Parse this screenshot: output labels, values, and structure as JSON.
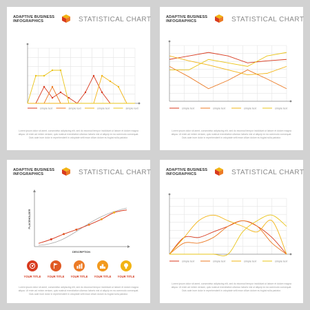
{
  "panels": [
    {
      "brand": [
        "ADAPTIVE BUSINESS",
        "INFOGRAPHICS"
      ],
      "title": "STATISTICAL CHART",
      "body_text": "Lorem ipsum dolor sit amet, consectetur adipiscing elit, sed do eiusmod tempor incididunt ut labore et dolore magna aliqua. Ut enim ad minim veniam, quis nostrud exercitation ullamco laboris nisi ut aliquip ex ea commodo consequat. Duis aute irure dolor in reprehenderit in voluptate velit esse cillum dolore eu fugiat nulla pariatur."
    },
    {
      "brand": [
        "ADAPTIVE BUSINESS",
        "INFOGRAPHICS"
      ],
      "title": "STATISTICAL CHART",
      "body_text": "Lorem ipsum dolor sit amet, consectetur adipiscing elit, sed do eiusmod tempor incididunt ut labore et dolore magna aliqua. Ut enim ad minim veniam, quis nostrud exercitation ullamco laboris nisi ut aliquip ex ea commodo consequat. Duis aute irure dolor in reprehenderit in voluptate velit esse cillum dolore eu fugiat nulla pariatur."
    },
    {
      "brand": [
        "ADAPTIVE BUSINESS",
        "INFOGRAPHICS"
      ],
      "title": "STATISTICAL CHART",
      "body_text": "Lorem ipsum dolor sit amet, consectetur adipiscing elit, sed do eiusmod tempor incididunt ut labore et dolore magna aliqua. Ut enim ad minim veniam, quis nostrud exercitation ullamco laboris nisi ut aliquip ex ea commodo consequat. Duis aute irure dolor in reprehenderit in voluptate velit esse cillum dolore eu fugiat nulla pariatur."
    },
    {
      "brand": [
        "ADAPTIVE BUSINESS",
        "INFOGRAPHICS"
      ],
      "title": "STATISTICAL CHART",
      "body_text": "Lorem ipsum dolor sit amet, consectetur adipiscing elit, sed do eiusmod tempor incididunt ut labore et dolore magna aliqua. Ut enim ad minim veniam, quis nostrud exercitation ullamco laboris nisi ut aliquip ex ea commodo consequat. Duis aute irure dolor in reprehenderit in voluptate velit esse cillum dolore eu fugiat nulla pariatur."
    }
  ],
  "colors": {
    "red": "#d83a1f",
    "orange": "#ec7b26",
    "yellow": "#f2b414",
    "gold": "#eac419",
    "grid": "#e4e4e4",
    "axis": "#8a8a8a"
  },
  "chart_data": [
    {
      "type": "line",
      "x": [
        1,
        2,
        3,
        4,
        5,
        6,
        7,
        8,
        9,
        10,
        11,
        12,
        13,
        14
      ],
      "ylim": [
        0,
        10
      ],
      "legend_position": "bottom",
      "series": [
        {
          "name": "simple text",
          "color": "#d83a1f",
          "values": [
            0,
            0,
            3,
            1,
            2,
            1,
            0,
            2,
            5,
            2,
            0,
            0,
            0,
            0
          ]
        },
        {
          "name": "simple text",
          "color": "#ec7b26",
          "values": [
            0,
            0,
            0,
            3,
            0,
            0,
            0,
            0,
            0,
            0,
            0,
            0,
            0,
            0
          ]
        },
        {
          "name": "simple text",
          "color": "#f2b414",
          "values": [
            0,
            0,
            0,
            0,
            0,
            0,
            0,
            0,
            0,
            5,
            4,
            3,
            0,
            0
          ]
        },
        {
          "name": "simple text",
          "color": "#eac419",
          "values": [
            0,
            5,
            5,
            6,
            6,
            0,
            0,
            0,
            0,
            0,
            0,
            0,
            0,
            0
          ]
        }
      ]
    },
    {
      "type": "line",
      "x": [
        0,
        1,
        2,
        3,
        4,
        5,
        6
      ],
      "ylim": [
        0,
        8
      ],
      "legend_position": "bottom",
      "series": [
        {
          "name": "simple text",
          "color": "#d83a1f",
          "values": [
            6,
            6.5,
            7,
            6.5,
            5.5,
            5.8,
            6
          ]
        },
        {
          "name": "simple text",
          "color": "#ec7b26",
          "values": [
            5,
            3.5,
            1.8,
            3,
            4.5,
            3.2,
            1.8
          ]
        },
        {
          "name": "simple text",
          "color": "#f2b414",
          "values": [
            6.5,
            5.8,
            5.2,
            4.5,
            3.8,
            4,
            5
          ]
        },
        {
          "name": "simple text",
          "color": "#eac419",
          "values": [
            4.5,
            4.5,
            6,
            5.5,
            5,
            6.5,
            7
          ]
        }
      ]
    },
    {
      "type": "line",
      "xlabel": "DESCRIPTION",
      "ylabel": "PLACEHOLDER",
      "points": [
        0.05,
        0.16,
        0.3,
        0.42,
        0.55,
        0.7,
        0.88,
        0.95
      ],
      "series": [
        {
          "color": "#d83a1f",
          "name": ""
        },
        {
          "color": "#aaaaaa",
          "name": ""
        }
      ],
      "items": [
        {
          "label": "YOUR TITLE",
          "icon": "target-icon",
          "color": "#d83a1f"
        },
        {
          "label": "YOUR TITLE",
          "icon": "flag-icon",
          "color": "#e05a24"
        },
        {
          "label": "YOUR TITLE",
          "icon": "chart-icon",
          "color": "#ec7b26"
        },
        {
          "label": "YOUR TITLE",
          "icon": "podium-icon",
          "color": "#f29a1e"
        },
        {
          "label": "YOUR TITLE",
          "icon": "bulb-icon",
          "color": "#f2b414"
        }
      ]
    },
    {
      "type": "line",
      "x": [
        0,
        1,
        2,
        3,
        4,
        5,
        6,
        7,
        8
      ],
      "ylim": [
        0,
        10
      ],
      "legend_position": "bottom",
      "series": [
        {
          "name": "simple text",
          "color": "#d83a1f",
          "values": [
            0,
            3,
            3,
            4,
            5,
            6,
            5,
            3,
            0
          ]
        },
        {
          "name": "simple text",
          "color": "#ec7b26",
          "values": [
            0,
            2,
            2,
            3,
            5,
            6,
            5,
            2,
            0
          ]
        },
        {
          "name": "simple text",
          "color": "#f2b414",
          "values": [
            0,
            3,
            6,
            7,
            6,
            5,
            4,
            6,
            0
          ]
        },
        {
          "name": "simple text",
          "color": "#eac419",
          "values": [
            0,
            0,
            0,
            0,
            0,
            4,
            6,
            7,
            5
          ]
        }
      ]
    }
  ]
}
